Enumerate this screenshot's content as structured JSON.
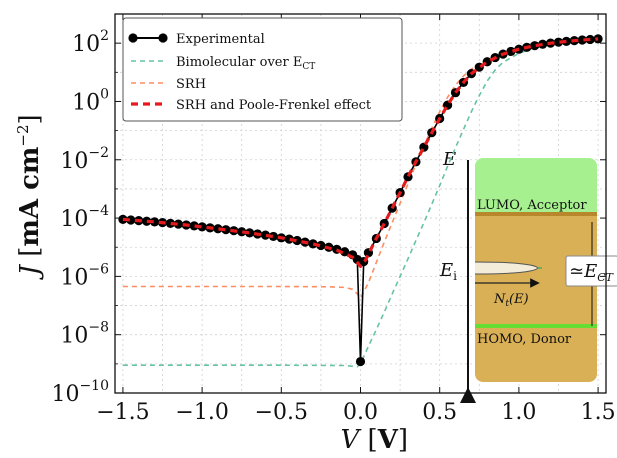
{
  "chart_data": {
    "type": "line",
    "xlabel": {
      "var": "V",
      "unit": "V"
    },
    "ylabel": {
      "var": "J",
      "unit": "mA cm",
      "exp": "−2"
    },
    "xlim": [
      -1.55,
      1.55
    ],
    "ylim_log10": [
      -10,
      3
    ],
    "log_y": true,
    "grid": true,
    "x_ticks": [
      -1.5,
      -1.0,
      -0.5,
      0.0,
      0.5,
      1.0,
      1.5
    ],
    "x_tick_labels": [
      "−1.5",
      "−1.0",
      "−0.5",
      "0.0",
      "0.5",
      "1.0",
      "1.5"
    ],
    "y_ticks_log10": [
      -10,
      -8,
      -6,
      -4,
      -2,
      0,
      2
    ],
    "y_tick_labels": [
      {
        "base": "10",
        "exp": "−10"
      },
      {
        "base": "10",
        "exp": "−8"
      },
      {
        "base": "10",
        "exp": "−6"
      },
      {
        "base": "10",
        "exp": "−4"
      },
      {
        "base": "10",
        "exp": "−2"
      },
      {
        "base": "10",
        "exp": "0"
      },
      {
        "base": "10",
        "exp": "2"
      }
    ],
    "legend_position": "top-left",
    "series": [
      {
        "name": "Experimental",
        "color": "#000000",
        "style": "line-markers",
        "points": [
          [
            -1.5,
            9e-05
          ],
          [
            -1.45,
            8.6e-05
          ],
          [
            -1.4,
            8.2e-05
          ],
          [
            -1.35,
            7.8e-05
          ],
          [
            -1.3,
            7.4e-05
          ],
          [
            -1.25,
            7e-05
          ],
          [
            -1.2,
            6.6e-05
          ],
          [
            -1.15,
            6.2e-05
          ],
          [
            -1.1,
            5.8e-05
          ],
          [
            -1.05,
            5.4e-05
          ],
          [
            -1.0,
            5e-05
          ],
          [
            -0.95,
            4.6e-05
          ],
          [
            -0.9,
            4.3e-05
          ],
          [
            -0.85,
            4e-05
          ],
          [
            -0.8,
            3.7e-05
          ],
          [
            -0.75,
            3.4e-05
          ],
          [
            -0.7,
            3.1e-05
          ],
          [
            -0.65,
            2.85e-05
          ],
          [
            -0.6,
            2.6e-05
          ],
          [
            -0.55,
            2.35e-05
          ],
          [
            -0.5,
            2.1e-05
          ],
          [
            -0.45,
            1.9e-05
          ],
          [
            -0.4,
            1.7e-05
          ],
          [
            -0.35,
            1.5e-05
          ],
          [
            -0.3,
            1.3e-05
          ],
          [
            -0.25,
            1.15e-05
          ],
          [
            -0.2,
            1e-05
          ],
          [
            -0.15,
            8.5e-06
          ],
          [
            -0.1,
            7e-06
          ],
          [
            -0.05,
            5.5e-06
          ],
          [
            -0.02,
            3.8e-06
          ],
          [
            0.0,
            1.2e-09
          ],
          [
            0.02,
            3.2e-06
          ],
          [
            0.05,
            6.5e-06
          ],
          [
            0.1,
            2e-05
          ],
          [
            0.15,
            6.5e-05
          ],
          [
            0.2,
            0.00022
          ],
          [
            0.25,
            0.00075
          ],
          [
            0.3,
            0.0026
          ],
          [
            0.35,
            0.0085
          ],
          [
            0.4,
            0.027
          ],
          [
            0.45,
            0.085
          ],
          [
            0.5,
            0.26
          ],
          [
            0.55,
            0.75
          ],
          [
            0.6,
            2.0
          ],
          [
            0.65,
            4.5
          ],
          [
            0.7,
            9.0
          ],
          [
            0.75,
            15
          ],
          [
            0.8,
            23
          ],
          [
            0.85,
            32
          ],
          [
            0.9,
            42
          ],
          [
            0.95,
            52
          ],
          [
            1.0,
            62
          ],
          [
            1.05,
            72
          ],
          [
            1.1,
            82
          ],
          [
            1.15,
            92
          ],
          [
            1.2,
            100
          ],
          [
            1.25,
            108
          ],
          [
            1.3,
            115
          ],
          [
            1.35,
            122
          ],
          [
            1.4,
            128
          ],
          [
            1.45,
            134
          ],
          [
            1.5,
            140
          ]
        ]
      },
      {
        "name": "Bimolecular over E_CT",
        "color": "#66c2a5",
        "style": "dashed",
        "points": [
          [
            -1.5,
            9e-10
          ],
          [
            -1.0,
            9e-10
          ],
          [
            -0.5,
            9e-10
          ],
          [
            -0.1,
            8.8e-10
          ],
          [
            -0.02,
            8e-10
          ],
          [
            0.0,
            1e-09
          ],
          [
            0.05,
            4e-09
          ],
          [
            0.1,
            1.5e-08
          ],
          [
            0.15,
            6e-08
          ],
          [
            0.2,
            2.5e-07
          ],
          [
            0.25,
            1e-06
          ],
          [
            0.3,
            4e-06
          ],
          [
            0.35,
            1.7e-05
          ],
          [
            0.4,
            7e-05
          ],
          [
            0.45,
            0.0003
          ],
          [
            0.5,
            0.0013
          ],
          [
            0.55,
            0.006
          ],
          [
            0.6,
            0.026
          ],
          [
            0.65,
            0.11
          ],
          [
            0.7,
            0.45
          ],
          [
            0.75,
            1.6
          ],
          [
            0.8,
            5
          ],
          [
            0.85,
            12
          ],
          [
            0.9,
            22
          ],
          [
            1.0,
            45
          ],
          [
            1.1,
            70
          ],
          [
            1.2,
            92
          ],
          [
            1.3,
            110
          ],
          [
            1.4,
            125
          ],
          [
            1.5,
            138
          ]
        ]
      },
      {
        "name": "SRH",
        "color": "#fc8d62",
        "style": "dashed",
        "points": [
          [
            -1.5,
            4.5e-07
          ],
          [
            -1.0,
            4.5e-07
          ],
          [
            -0.5,
            4.5e-07
          ],
          [
            -0.2,
            4.4e-07
          ],
          [
            -0.1,
            4.2e-07
          ],
          [
            -0.05,
            3.6e-07
          ],
          [
            -0.02,
            2.5e-07
          ],
          [
            0.0,
            1.8e-07
          ],
          [
            0.05,
            6e-07
          ],
          [
            0.1,
            3e-06
          ],
          [
            0.15,
            1.5e-05
          ],
          [
            0.2,
            7e-05
          ],
          [
            0.25,
            0.00032
          ],
          [
            0.3,
            0.0015
          ],
          [
            0.35,
            0.007
          ],
          [
            0.4,
            0.03
          ],
          [
            0.45,
            0.12
          ],
          [
            0.5,
            0.45
          ],
          [
            0.55,
            1.4
          ],
          [
            0.6,
            3.6
          ],
          [
            0.65,
            7.5
          ],
          [
            0.7,
            13
          ],
          [
            0.8,
            27
          ],
          [
            0.9,
            43
          ],
          [
            1.0,
            60
          ],
          [
            1.1,
            78
          ],
          [
            1.2,
            95
          ],
          [
            1.3,
            110
          ],
          [
            1.4,
            124
          ],
          [
            1.5,
            137
          ]
        ]
      },
      {
        "name": "SRH and Poole-Frenkel effect",
        "color": "#e41a1c",
        "style": "dashed-bold",
        "points": [
          [
            -1.5,
            9e-05
          ],
          [
            -1.3,
            7.4e-05
          ],
          [
            -1.1,
            5.8e-05
          ],
          [
            -0.9,
            4.3e-05
          ],
          [
            -0.7,
            3.1e-05
          ],
          [
            -0.5,
            2.1e-05
          ],
          [
            -0.3,
            1.3e-05
          ],
          [
            -0.15,
            8e-06
          ],
          [
            -0.05,
            4.5e-06
          ],
          [
            -0.02,
            3e-06
          ],
          [
            0.0,
            2.2e-06
          ],
          [
            0.03,
            3.5e-06
          ],
          [
            0.06,
            7.5e-06
          ],
          [
            0.1,
            2e-05
          ],
          [
            0.15,
            6.5e-05
          ],
          [
            0.2,
            0.00022
          ],
          [
            0.25,
            0.00075
          ],
          [
            0.3,
            0.0026
          ],
          [
            0.35,
            0.0085
          ],
          [
            0.4,
            0.027
          ],
          [
            0.45,
            0.085
          ],
          [
            0.5,
            0.26
          ],
          [
            0.55,
            0.75
          ],
          [
            0.6,
            2.0
          ],
          [
            0.65,
            4.5
          ],
          [
            0.7,
            9.0
          ],
          [
            0.8,
            23
          ],
          [
            0.9,
            42
          ],
          [
            1.0,
            62
          ],
          [
            1.1,
            82
          ],
          [
            1.2,
            100
          ],
          [
            1.3,
            115
          ],
          [
            1.4,
            128
          ],
          [
            1.5,
            140
          ]
        ]
      }
    ],
    "legend": [
      {
        "label": "Experimental",
        "sub": ""
      },
      {
        "label": "Bimolecular over E",
        "sub": "CT"
      },
      {
        "label": "SRH",
        "sub": ""
      },
      {
        "label": "SRH and Poole-Frenkel effect",
        "sub": ""
      }
    ],
    "inset": {
      "axis_label": "E",
      "lumo_label": "LUMO, Acceptor",
      "homo_label": "HOMO, Donor",
      "ei_label": "E",
      "ei_sub": "i",
      "nt_label": "N",
      "nt_sub": "t",
      "nt_arg": "(E)",
      "ect_label": "≃E",
      "ect_sub": "CT",
      "colors": {
        "acceptor": "#a6f08f",
        "gap": "#d9b056",
        "donor": "#a6f08f",
        "lumo_line": "#b8862b",
        "homo_line": "#66dd33"
      }
    }
  }
}
